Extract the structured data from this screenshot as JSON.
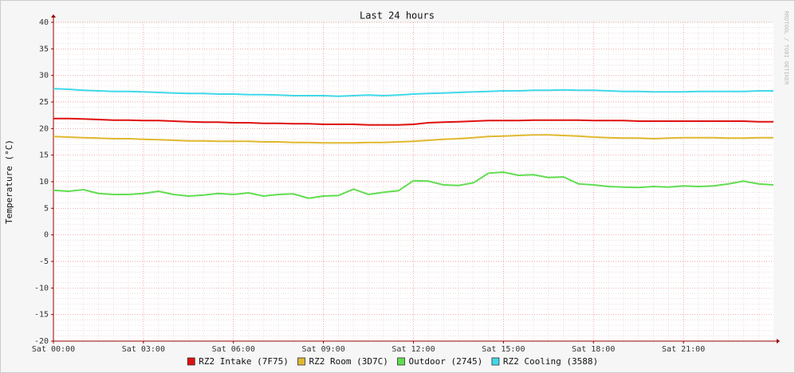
{
  "chart_data": {
    "type": "line",
    "title": "Last 24 hours",
    "y_label": "Temperature (°C)",
    "watermark": "RRDTOOL / TOBI OETIKER",
    "x": [
      0,
      0.5,
      1,
      1.5,
      2,
      2.5,
      3,
      3.5,
      4,
      4.5,
      5,
      5.5,
      6,
      6.5,
      7,
      7.5,
      8,
      8.5,
      9,
      9.5,
      10,
      10.5,
      11,
      11.5,
      12,
      12.5,
      13,
      13.5,
      14,
      14.5,
      15,
      15.5,
      16,
      16.5,
      17,
      17.5,
      18,
      18.5,
      19,
      19.5,
      20,
      20.5,
      21,
      21.5,
      22,
      22.5,
      23,
      23.5,
      24
    ],
    "xlim": [
      0,
      24
    ],
    "xticks": [
      {
        "value": 0,
        "label": "Sat 00:00"
      },
      {
        "value": 3,
        "label": "Sat 03:00"
      },
      {
        "value": 6,
        "label": "Sat 06:00"
      },
      {
        "value": 9,
        "label": "Sat 09:00"
      },
      {
        "value": 12,
        "label": "Sat 12:00"
      },
      {
        "value": 15,
        "label": "Sat 15:00"
      },
      {
        "value": 18,
        "label": "Sat 18:00"
      },
      {
        "value": 21,
        "label": "Sat 21:00"
      }
    ],
    "ylim": [
      -20,
      40
    ],
    "yticks": [
      -20,
      -15,
      -10,
      -5,
      0,
      5,
      10,
      15,
      20,
      25,
      30,
      35,
      40
    ],
    "grid": true,
    "minor_grid": true,
    "legend": "bottom",
    "series": [
      {
        "name": "RZ2 Intake (7F75)",
        "color": "#e01010",
        "values": [
          21.9,
          21.9,
          21.8,
          21.7,
          21.6,
          21.6,
          21.5,
          21.5,
          21.4,
          21.3,
          21.2,
          21.2,
          21.1,
          21.1,
          21.0,
          21.0,
          20.9,
          20.9,
          20.8,
          20.8,
          20.8,
          20.7,
          20.7,
          20.7,
          20.8,
          21.1,
          21.2,
          21.3,
          21.4,
          21.5,
          21.5,
          21.5,
          21.6,
          21.6,
          21.6,
          21.6,
          21.5,
          21.5,
          21.5,
          21.4,
          21.4,
          21.4,
          21.4,
          21.4,
          21.4,
          21.4,
          21.4,
          21.3,
          21.3
        ]
      },
      {
        "name": "RZ2 Room (3D7C)",
        "color": "#e0b830",
        "values": [
          18.5,
          18.4,
          18.3,
          18.2,
          18.1,
          18.1,
          18.0,
          17.9,
          17.8,
          17.7,
          17.7,
          17.6,
          17.6,
          17.6,
          17.5,
          17.5,
          17.4,
          17.4,
          17.3,
          17.3,
          17.3,
          17.4,
          17.4,
          17.5,
          17.6,
          17.8,
          18.0,
          18.1,
          18.3,
          18.5,
          18.6,
          18.7,
          18.8,
          18.8,
          18.7,
          18.6,
          18.4,
          18.3,
          18.2,
          18.2,
          18.1,
          18.2,
          18.3,
          18.3,
          18.3,
          18.2,
          18.2,
          18.3,
          18.3
        ]
      },
      {
        "name": "Outdoor (2745)",
        "color": "#60dd50",
        "values": [
          8.4,
          8.2,
          8.5,
          7.8,
          7.6,
          7.6,
          7.8,
          8.2,
          7.6,
          7.3,
          7.5,
          7.8,
          7.6,
          7.9,
          7.3,
          7.6,
          7.7,
          6.9,
          7.3,
          7.4,
          8.6,
          7.6,
          8.0,
          8.3,
          10.2,
          10.1,
          9.4,
          9.3,
          9.8,
          11.6,
          11.8,
          11.2,
          11.3,
          10.8,
          10.9,
          9.6,
          9.4,
          9.1,
          9.0,
          8.9,
          9.1,
          9.0,
          9.2,
          9.1,
          9.2,
          9.6,
          10.1,
          9.6,
          9.4
        ]
      },
      {
        "name": "RZ2 Cooling (3588)",
        "color": "#40d8e8",
        "values": [
          27.5,
          27.4,
          27.2,
          27.1,
          27.0,
          27.0,
          26.9,
          26.8,
          26.7,
          26.6,
          26.6,
          26.5,
          26.5,
          26.4,
          26.4,
          26.3,
          26.2,
          26.2,
          26.2,
          26.1,
          26.2,
          26.3,
          26.2,
          26.3,
          26.5,
          26.6,
          26.7,
          26.8,
          26.9,
          27.0,
          27.1,
          27.1,
          27.2,
          27.2,
          27.3,
          27.2,
          27.2,
          27.1,
          27.0,
          27.0,
          26.9,
          26.9,
          26.9,
          27.0,
          27.0,
          27.0,
          27.0,
          27.1,
          27.1
        ]
      }
    ]
  }
}
